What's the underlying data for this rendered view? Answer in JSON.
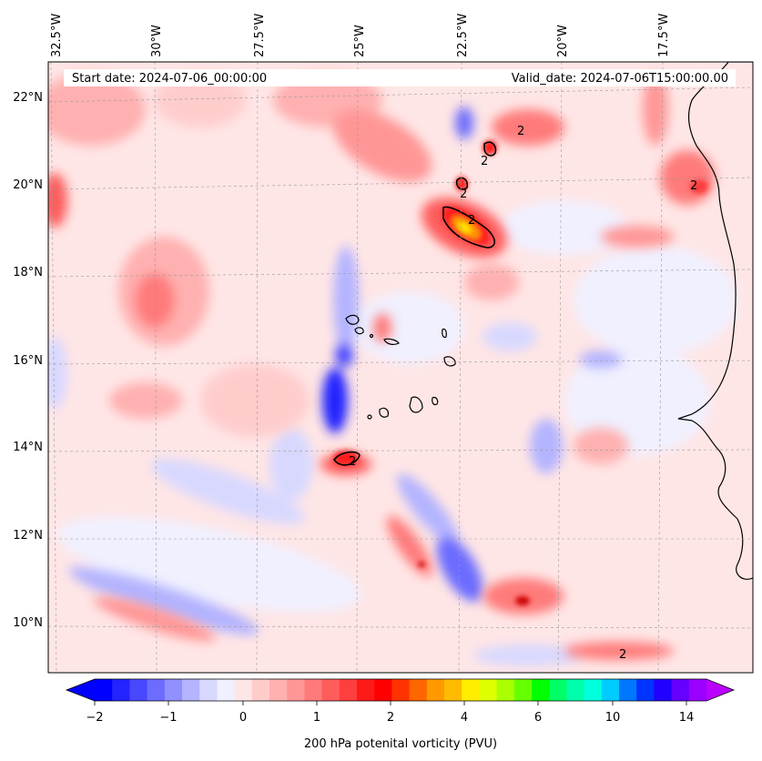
{
  "map": {
    "start_date": "Start date: 2024-07-06_00:00:00",
    "valid_date": "Valid_date: 2024-07-06T15:00:00.00",
    "lon_labels": [
      "32.5°W",
      "30°W",
      "27.5°W",
      "25°W",
      "22.5°W",
      "20°W",
      "17.5°W"
    ],
    "lat_labels": [
      "22°N",
      "20°N",
      "18°N",
      "16°N",
      "14°N",
      "12°N",
      "10°N"
    ],
    "contour_label": "2"
  },
  "colorbar": {
    "label": "200 hPa potenital vorticity (PVU)",
    "tick_labels": [
      "−2",
      "−1",
      "0",
      "1",
      "2",
      "4",
      "6",
      "10",
      "14"
    ],
    "colors": [
      "#0000ff",
      "#2424ff",
      "#4848ff",
      "#6c6cff",
      "#9090ff",
      "#b4b4ff",
      "#d8d8ff",
      "#f0f0ff",
      "#ffe6e6",
      "#ffcccc",
      "#ffb0b0",
      "#ff9696",
      "#ff7a7a",
      "#ff5c5c",
      "#ff3e3e",
      "#ff1a1a",
      "#ff0000",
      "#ff3300",
      "#ff6600",
      "#ff9900",
      "#ffbb00",
      "#ffee00",
      "#ddff00",
      "#aaff00",
      "#66ff00",
      "#00ff00",
      "#00ff66",
      "#00ffaa",
      "#00ffdd",
      "#00ccff",
      "#0077ff",
      "#0033ff",
      "#2200ff",
      "#6600ff",
      "#9900ff"
    ],
    "under_color": "#0000ff",
    "over_color": "#bb00ff"
  }
}
